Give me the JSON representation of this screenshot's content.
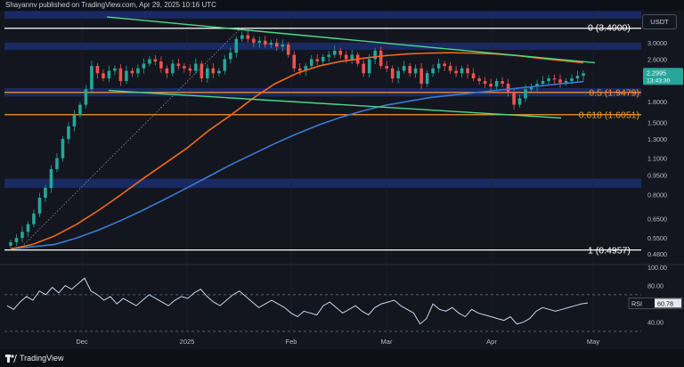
{
  "header": {
    "text": "Shayannv published on TradingView.com, Apr 29, 2025 10:16 UTC"
  },
  "currency_label": "USDT",
  "footer": {
    "brand": "TradingView"
  },
  "colors": {
    "bg": "#13161f",
    "grid": "#1e2230",
    "zone": "#1b2e6e",
    "ema_orange": "#f2691b",
    "sma_blue": "#3a7bd5",
    "trendline_green": "#4cd98a",
    "fib_orange": "#f5962e",
    "level_white": "#ffffff",
    "candle_up": "#26a69a",
    "candle_down": "#ef5350",
    "rsi_line": "#c9d6ea",
    "price_badge": "#26a69a"
  },
  "chart_data": [
    {
      "type": "candlestick",
      "title": "",
      "scale": "log",
      "ylim": [
        0.44,
        3.9
      ],
      "y_ticks": [
        "3.0000",
        "2.6000",
        "2.2000",
        "1.8000",
        "1.5000",
        "1.3000",
        "1.1000",
        "0.9500",
        "0.8000",
        "0.6500",
        "0.5500",
        "0.4800"
      ],
      "x_ticks": [
        "Dec",
        "2025",
        "Feb",
        "Mar",
        "Apr",
        "May"
      ],
      "last_price": "2.2995",
      "countdown": "13:43:30",
      "levels": [
        {
          "label": "0 (3.4000)",
          "value": 3.4,
          "color": "#ffffff"
        },
        {
          "label": "0.5 (1.9479)",
          "value": 1.9479,
          "color": "#f5962e"
        },
        {
          "label": "0.618 (1.6051)",
          "value": 1.6051,
          "color": "#f5962e"
        },
        {
          "label": "1 (0.4957)",
          "value": 0.4957,
          "color": "#ffffff"
        }
      ],
      "zones": [
        {
          "low": 3.7,
          "high": 3.95
        },
        {
          "low": 2.82,
          "high": 3.0
        },
        {
          "low": 1.88,
          "high": 2.02
        },
        {
          "low": 0.85,
          "high": 0.92
        }
      ],
      "series": [
        {
          "name": "",
          "kind": "close",
          "values": [
            0.53,
            0.55,
            0.58,
            0.62,
            0.68,
            0.78,
            0.85,
            1.0,
            1.1,
            1.3,
            1.45,
            1.6,
            1.75,
            2.0,
            2.45,
            2.3,
            2.2,
            2.35,
            2.4,
            2.15,
            2.35,
            2.3,
            2.4,
            2.5,
            2.6,
            2.55,
            2.4,
            2.3,
            2.5,
            2.45,
            2.4,
            2.35,
            2.5,
            2.2,
            2.4,
            2.3,
            2.35,
            2.6,
            2.75,
            3.1,
            3.2,
            3.1,
            3.0,
            3.05,
            2.95,
            3.0,
            2.9,
            2.95,
            2.7,
            2.4,
            2.35,
            2.45,
            2.6,
            2.55,
            2.65,
            2.7,
            2.8,
            2.7,
            2.6,
            2.7,
            2.5,
            2.3,
            2.6,
            2.8,
            2.45,
            2.4,
            2.2,
            2.35,
            2.45,
            2.3,
            2.4,
            2.1,
            2.3,
            2.4,
            2.5,
            2.45,
            2.35,
            2.3,
            2.4,
            2.3,
            2.2,
            2.15,
            2.1,
            2.05,
            2.15,
            2.1,
            1.95,
            1.75,
            1.85,
            2.0,
            2.05,
            2.1,
            2.15,
            2.2,
            2.18,
            2.12,
            2.15,
            2.2,
            2.25,
            2.3
          ]
        },
        {
          "name": "",
          "kind": "ema",
          "values": [
            0.5,
            0.52,
            0.56,
            0.62,
            0.7,
            0.8,
            0.92,
            1.05,
            1.2,
            1.4,
            1.6,
            1.85,
            2.1,
            2.3,
            2.45,
            2.55,
            2.62,
            2.68,
            2.72,
            2.74,
            2.75,
            2.74,
            2.72,
            2.68,
            2.62,
            2.57,
            2.52
          ]
        },
        {
          "name": "",
          "kind": "sma",
          "values": [
            0.5,
            0.51,
            0.52,
            0.55,
            0.59,
            0.64,
            0.7,
            0.77,
            0.85,
            0.94,
            1.04,
            1.14,
            1.25,
            1.36,
            1.47,
            1.57,
            1.66,
            1.74,
            1.8,
            1.86,
            1.9,
            1.94,
            1.98,
            2.02,
            2.06,
            2.1,
            2.14
          ]
        }
      ]
    },
    {
      "type": "line",
      "title": "",
      "label": "RSI",
      "value_label": "60.78",
      "ylim": [
        30,
        100
      ],
      "y_ticks": [
        "100.00",
        "80.00",
        "40.00"
      ],
      "bands": [
        70,
        30
      ],
      "series": [
        {
          "name": "",
          "values": [
            58,
            54,
            62,
            68,
            64,
            74,
            70,
            78,
            72,
            80,
            76,
            82,
            88,
            74,
            70,
            64,
            68,
            60,
            66,
            62,
            58,
            64,
            70,
            66,
            62,
            58,
            64,
            68,
            66,
            72,
            76,
            68,
            62,
            58,
            64,
            70,
            74,
            68,
            62,
            56,
            60,
            64,
            60,
            56,
            50,
            46,
            52,
            50,
            48,
            58,
            62,
            56,
            50,
            54,
            58,
            52,
            48,
            56,
            60,
            62,
            64,
            58,
            54,
            50,
            38,
            44,
            60,
            54,
            52,
            56,
            50,
            46,
            54,
            50,
            48,
            46,
            44,
            42,
            46,
            38,
            40,
            44,
            52,
            56,
            54,
            52,
            54,
            56,
            58,
            60,
            61
          ]
        }
      ]
    }
  ]
}
